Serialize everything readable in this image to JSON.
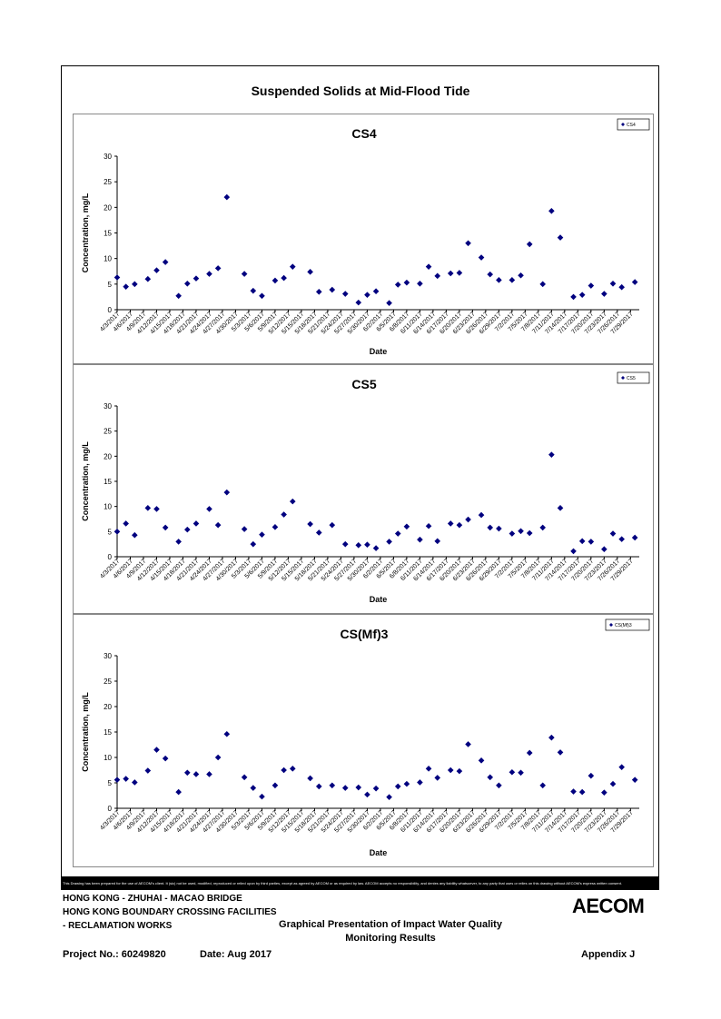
{
  "page": {
    "main_title": "Suspended Solids at Mid-Flood Tide",
    "notice": "This Drawing has been prepared for the use of AECOM's client. It (sic) not be used, modified, reproduced or relied upon by third parties, except as agreed by AECOM or as required by law. AECOM accepts no responsibility, and denies any liability whatsoever, to any party that uses or relies on this drawing without AECOM's express written consent.",
    "footer": {
      "line1": "HONG KONG - ZHUHAI - MACAO BRIDGE",
      "line2": "HONG KONG BOUNDARY CROSSING FACILITIES",
      "line3": "- RECLAMATION WORKS",
      "project_no": "Project No.: 60249820",
      "date": "Date: Aug 2017",
      "drawing_title_1": "Graphical Presentation of Impact Water Quality",
      "drawing_title_2": "Monitoring Results",
      "appendix": "Appendix J",
      "logo": "AECOM"
    }
  },
  "chart_data": [
    {
      "type": "scatter",
      "title": "CS4",
      "xlabel": "Date",
      "ylabel": "Concentration, mg/L",
      "ylim": [
        0,
        30
      ],
      "yticks": [
        0,
        5,
        10,
        15,
        20,
        25,
        30
      ],
      "legend": "top-right",
      "grid": false,
      "marker_color": "#00007f",
      "x_ticks": [
        "4/3/2017",
        "4/6/2017",
        "4/9/2017",
        "4/12/2017",
        "4/15/2017",
        "4/18/2017",
        "4/21/2017",
        "4/24/2017",
        "4/27/2017",
        "4/30/2017",
        "5/3/2017",
        "5/6/2017",
        "5/9/2017",
        "5/12/2017",
        "5/15/2017",
        "5/18/2017",
        "5/21/2017",
        "5/24/2017",
        "5/27/2017",
        "5/30/2017",
        "6/2/2017",
        "6/5/2017",
        "6/8/2017",
        "6/11/2017",
        "6/14/2017",
        "6/17/2017",
        "6/20/2017",
        "6/23/2017",
        "6/26/2017",
        "6/29/2017",
        "7/2/2017",
        "7/5/2017",
        "7/8/2017",
        "7/11/2017",
        "7/14/2017",
        "7/17/2017",
        "7/20/2017",
        "7/23/2017",
        "7/26/2017",
        "7/29/2017"
      ],
      "series": [
        {
          "name": "CS4",
          "points": [
            [
              "4/3/2017",
              6.3
            ],
            [
              "4/5/2017",
              4.5
            ],
            [
              "4/7/2017",
              5.0
            ],
            [
              "4/10/2017",
              6.0
            ],
            [
              "4/12/2017",
              7.7
            ],
            [
              "4/14/2017",
              9.3
            ],
            [
              "4/17/2017",
              2.7
            ],
            [
              "4/19/2017",
              5.1
            ],
            [
              "4/21/2017",
              6.1
            ],
            [
              "4/24/2017",
              7.0
            ],
            [
              "4/26/2017",
              8.1
            ],
            [
              "4/28/2017",
              22.0
            ],
            [
              "5/2/2017",
              7.0
            ],
            [
              "5/4/2017",
              3.7
            ],
            [
              "5/6/2017",
              2.7
            ],
            [
              "5/9/2017",
              5.7
            ],
            [
              "5/11/2017",
              6.2
            ],
            [
              "5/13/2017",
              8.4
            ],
            [
              "5/17/2017",
              7.4
            ],
            [
              "5/19/2017",
              3.5
            ],
            [
              "5/22/2017",
              3.9
            ],
            [
              "5/25/2017",
              3.1
            ],
            [
              "5/28/2017",
              1.4
            ],
            [
              "5/30/2017",
              2.9
            ],
            [
              "6/1/2017",
              3.6
            ],
            [
              "6/4/2017",
              1.3
            ],
            [
              "6/6/2017",
              4.9
            ],
            [
              "6/8/2017",
              5.3
            ],
            [
              "6/11/2017",
              5.1
            ],
            [
              "6/13/2017",
              8.4
            ],
            [
              "6/15/2017",
              6.6
            ],
            [
              "6/18/2017",
              7.1
            ],
            [
              "6/20/2017",
              7.2
            ],
            [
              "6/22/2017",
              13.0
            ],
            [
              "6/25/2017",
              10.2
            ],
            [
              "6/27/2017",
              6.9
            ],
            [
              "6/29/2017",
              5.8
            ],
            [
              "7/2/2017",
              5.8
            ],
            [
              "7/4/2017",
              6.7
            ],
            [
              "7/6/2017",
              12.8
            ],
            [
              "7/9/2017",
              5.0
            ],
            [
              "7/11/2017",
              19.3
            ],
            [
              "7/13/2017",
              14.1
            ],
            [
              "7/16/2017",
              2.5
            ],
            [
              "7/18/2017",
              2.9
            ],
            [
              "7/20/2017",
              4.7
            ],
            [
              "7/23/2017",
              3.1
            ],
            [
              "7/25/2017",
              5.1
            ],
            [
              "7/27/2017",
              4.4
            ],
            [
              "7/30/2017",
              5.4
            ]
          ]
        }
      ]
    },
    {
      "type": "scatter",
      "title": "CS5",
      "xlabel": "Date",
      "ylabel": "Concentration, mg/L",
      "ylim": [
        0,
        30
      ],
      "yticks": [
        0,
        5,
        10,
        15,
        20,
        25,
        30
      ],
      "legend": "top-right",
      "grid": false,
      "marker_color": "#00007f",
      "x_ticks": [
        "4/3/2017",
        "4/6/2017",
        "4/9/2017",
        "4/12/2017",
        "4/15/2017",
        "4/18/2017",
        "4/21/2017",
        "4/24/2017",
        "4/27/2017",
        "4/30/2017",
        "5/3/2017",
        "5/6/2017",
        "5/9/2017",
        "5/12/2017",
        "5/15/2017",
        "5/18/2017",
        "5/21/2017",
        "5/24/2017",
        "5/27/2017",
        "5/30/2017",
        "6/2/2017",
        "6/5/2017",
        "6/8/2017",
        "6/11/2017",
        "6/14/2017",
        "6/17/2017",
        "6/20/2017",
        "6/23/2017",
        "6/26/2017",
        "6/29/2017",
        "7/2/2017",
        "7/5/2017",
        "7/8/2017",
        "7/11/2017",
        "7/14/2017",
        "7/17/2017",
        "7/20/2017",
        "7/23/2017",
        "7/26/2017",
        "7/29/2017"
      ],
      "series": [
        {
          "name": "CS5",
          "points": [
            [
              "4/3/2017",
              5.0
            ],
            [
              "4/5/2017",
              6.6
            ],
            [
              "4/7/2017",
              4.3
            ],
            [
              "4/10/2017",
              9.7
            ],
            [
              "4/12/2017",
              9.5
            ],
            [
              "4/14/2017",
              5.8
            ],
            [
              "4/17/2017",
              3.0
            ],
            [
              "4/19/2017",
              5.4
            ],
            [
              "4/21/2017",
              6.6
            ],
            [
              "4/24/2017",
              9.5
            ],
            [
              "4/26/2017",
              6.3
            ],
            [
              "4/28/2017",
              12.8
            ],
            [
              "5/2/2017",
              5.5
            ],
            [
              "5/4/2017",
              2.5
            ],
            [
              "5/6/2017",
              4.4
            ],
            [
              "5/9/2017",
              5.9
            ],
            [
              "5/11/2017",
              8.4
            ],
            [
              "5/13/2017",
              11.0
            ],
            [
              "5/17/2017",
              6.5
            ],
            [
              "5/19/2017",
              4.8
            ],
            [
              "5/22/2017",
              6.3
            ],
            [
              "5/25/2017",
              2.5
            ],
            [
              "5/28/2017",
              2.3
            ],
            [
              "5/30/2017",
              2.4
            ],
            [
              "6/1/2017",
              1.7
            ],
            [
              "6/4/2017",
              3.0
            ],
            [
              "6/6/2017",
              4.6
            ],
            [
              "6/8/2017",
              6.0
            ],
            [
              "6/11/2017",
              3.4
            ],
            [
              "6/13/2017",
              6.1
            ],
            [
              "6/15/2017",
              3.1
            ],
            [
              "6/18/2017",
              6.6
            ],
            [
              "6/20/2017",
              6.3
            ],
            [
              "6/22/2017",
              7.4
            ],
            [
              "6/25/2017",
              8.3
            ],
            [
              "6/27/2017",
              5.8
            ],
            [
              "6/29/2017",
              5.6
            ],
            [
              "7/2/2017",
              4.6
            ],
            [
              "7/4/2017",
              5.1
            ],
            [
              "7/6/2017",
              4.7
            ],
            [
              "7/9/2017",
              5.8
            ],
            [
              "7/11/2017",
              20.3
            ],
            [
              "7/13/2017",
              9.7
            ],
            [
              "7/16/2017",
              1.1
            ],
            [
              "7/18/2017",
              3.1
            ],
            [
              "7/20/2017",
              3.0
            ],
            [
              "7/23/2017",
              1.5
            ],
            [
              "7/25/2017",
              4.6
            ],
            [
              "7/27/2017",
              3.5
            ],
            [
              "7/30/2017",
              3.8
            ]
          ]
        }
      ]
    },
    {
      "type": "scatter",
      "title": "CS(Mf)3",
      "xlabel": "Date",
      "ylabel": "Concentration, mg/L",
      "ylim": [
        0,
        30
      ],
      "yticks": [
        0,
        5,
        10,
        15,
        20,
        25,
        30
      ],
      "legend": "top-right",
      "grid": false,
      "marker_color": "#00007f",
      "x_ticks": [
        "4/3/2017",
        "4/6/2017",
        "4/9/2017",
        "4/12/2017",
        "4/15/2017",
        "4/18/2017",
        "4/21/2017",
        "4/24/2017",
        "4/27/2017",
        "4/30/2017",
        "5/3/2017",
        "5/6/2017",
        "5/9/2017",
        "5/12/2017",
        "5/15/2017",
        "5/18/2017",
        "5/21/2017",
        "5/24/2017",
        "5/27/2017",
        "5/30/2017",
        "6/2/2017",
        "6/5/2017",
        "6/8/2017",
        "6/11/2017",
        "6/14/2017",
        "6/17/2017",
        "6/20/2017",
        "6/23/2017",
        "6/26/2017",
        "6/29/2017",
        "7/2/2017",
        "7/5/2017",
        "7/8/2017",
        "7/11/2017",
        "7/14/2017",
        "7/17/2017",
        "7/20/2017",
        "7/23/2017",
        "7/26/2017",
        "7/29/2017"
      ],
      "series": [
        {
          "name": "CS(Mf)3",
          "points": [
            [
              "4/3/2017",
              5.6
            ],
            [
              "4/5/2017",
              5.8
            ],
            [
              "4/7/2017",
              5.1
            ],
            [
              "4/10/2017",
              7.4
            ],
            [
              "4/12/2017",
              11.5
            ],
            [
              "4/14/2017",
              9.8
            ],
            [
              "4/17/2017",
              3.2
            ],
            [
              "4/19/2017",
              7.0
            ],
            [
              "4/21/2017",
              6.7
            ],
            [
              "4/24/2017",
              6.7
            ],
            [
              "4/26/2017",
              10.0
            ],
            [
              "4/28/2017",
              14.6
            ],
            [
              "5/2/2017",
              6.1
            ],
            [
              "5/4/2017",
              4.0
            ],
            [
              "5/6/2017",
              2.3
            ],
            [
              "5/9/2017",
              4.5
            ],
            [
              "5/11/2017",
              7.5
            ],
            [
              "5/13/2017",
              7.8
            ],
            [
              "5/17/2017",
              5.9
            ],
            [
              "5/19/2017",
              4.3
            ],
            [
              "5/22/2017",
              4.5
            ],
            [
              "5/25/2017",
              4.0
            ],
            [
              "5/28/2017",
              4.1
            ],
            [
              "5/30/2017",
              2.7
            ],
            [
              "6/1/2017",
              3.9
            ],
            [
              "6/4/2017",
              2.2
            ],
            [
              "6/6/2017",
              4.3
            ],
            [
              "6/8/2017",
              4.8
            ],
            [
              "6/11/2017",
              5.1
            ],
            [
              "6/13/2017",
              7.8
            ],
            [
              "6/15/2017",
              6.0
            ],
            [
              "6/18/2017",
              7.5
            ],
            [
              "6/20/2017",
              7.3
            ],
            [
              "6/22/2017",
              12.6
            ],
            [
              "6/25/2017",
              9.4
            ],
            [
              "6/27/2017",
              6.1
            ],
            [
              "6/29/2017",
              4.5
            ],
            [
              "7/2/2017",
              7.1
            ],
            [
              "7/4/2017",
              7.0
            ],
            [
              "7/6/2017",
              10.9
            ],
            [
              "7/9/2017",
              4.5
            ],
            [
              "7/11/2017",
              13.9
            ],
            [
              "7/13/2017",
              11.0
            ],
            [
              "7/16/2017",
              3.3
            ],
            [
              "7/18/2017",
              3.2
            ],
            [
              "7/20/2017",
              6.4
            ],
            [
              "7/23/2017",
              3.1
            ],
            [
              "7/25/2017",
              4.8
            ],
            [
              "7/27/2017",
              8.1
            ],
            [
              "7/30/2017",
              5.6
            ]
          ]
        }
      ]
    }
  ]
}
